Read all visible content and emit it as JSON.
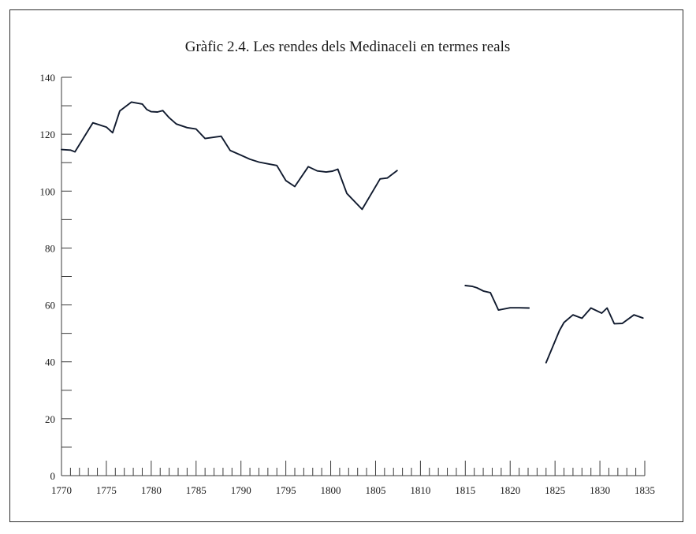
{
  "chart_data": {
    "type": "line",
    "title": "Gràfic 2.4. Les rendes dels Medinaceli en termes reals",
    "xlabel": "",
    "ylabel": "",
    "xlim": [
      1770,
      1835
    ],
    "ylim": [
      0,
      140
    ],
    "x_ticks": [
      1770,
      1775,
      1780,
      1785,
      1790,
      1795,
      1800,
      1805,
      1810,
      1815,
      1820,
      1825,
      1830,
      1835
    ],
    "y_ticks": [
      0,
      20,
      40,
      60,
      80,
      100,
      120,
      140
    ],
    "grid": false,
    "legend": "none",
    "color": "#101a2e",
    "series": [
      {
        "segments": [
          [
            [
              1770,
              114.6
            ],
            [
              1771,
              114.4
            ],
            [
              1771.5,
              113.8
            ],
            [
              1773.5,
              124.0
            ],
            [
              1775,
              122.5
            ],
            [
              1775.7,
              120.5
            ],
            [
              1776.5,
              128.2
            ],
            [
              1777.8,
              131.3
            ],
            [
              1779,
              130.6
            ],
            [
              1779.5,
              128.7
            ],
            [
              1780,
              127.9
            ],
            [
              1780.7,
              127.8
            ],
            [
              1781.3,
              128.3
            ],
            [
              1782,
              125.8
            ],
            [
              1782.8,
              123.6
            ],
            [
              1784,
              122.3
            ],
            [
              1785,
              121.8
            ],
            [
              1786,
              118.5
            ],
            [
              1787.8,
              119.3
            ],
            [
              1788.8,
              114.3
            ],
            [
              1790,
              112.6
            ],
            [
              1791,
              111.2
            ],
            [
              1792,
              110.2
            ],
            [
              1793,
              109.6
            ],
            [
              1794,
              109.0
            ],
            [
              1795,
              103.7
            ],
            [
              1796,
              101.6
            ],
            [
              1797.5,
              108.6
            ],
            [
              1798.5,
              107.1
            ],
            [
              1799.5,
              106.7
            ],
            [
              1800.2,
              107.0
            ],
            [
              1800.8,
              107.7
            ],
            [
              1801.8,
              99.2
            ],
            [
              1803.5,
              93.6
            ],
            [
              1805.5,
              104.3
            ],
            [
              1806.3,
              104.6
            ],
            [
              1807.4,
              107.2
            ]
          ],
          [
            [
              1815,
              66.8
            ],
            [
              1815.8,
              66.5
            ],
            [
              1816.3,
              66.0
            ],
            [
              1817,
              64.9
            ],
            [
              1817.8,
              64.3
            ],
            [
              1818.7,
              58.2
            ],
            [
              1820,
              59.0
            ],
            [
              1821,
              59.0
            ],
            [
              1822.1,
              58.9
            ]
          ],
          [
            [
              1824,
              39.7
            ],
            [
              1825.5,
              51.0
            ],
            [
              1826,
              53.8
            ],
            [
              1827,
              56.5
            ],
            [
              1828,
              55.3
            ],
            [
              1829,
              58.9
            ],
            [
              1830.2,
              57.1
            ],
            [
              1830.8,
              58.9
            ],
            [
              1831.6,
              53.4
            ],
            [
              1832.5,
              53.5
            ],
            [
              1833.8,
              56.5
            ],
            [
              1834.8,
              55.4
            ]
          ]
        ]
      }
    ]
  }
}
